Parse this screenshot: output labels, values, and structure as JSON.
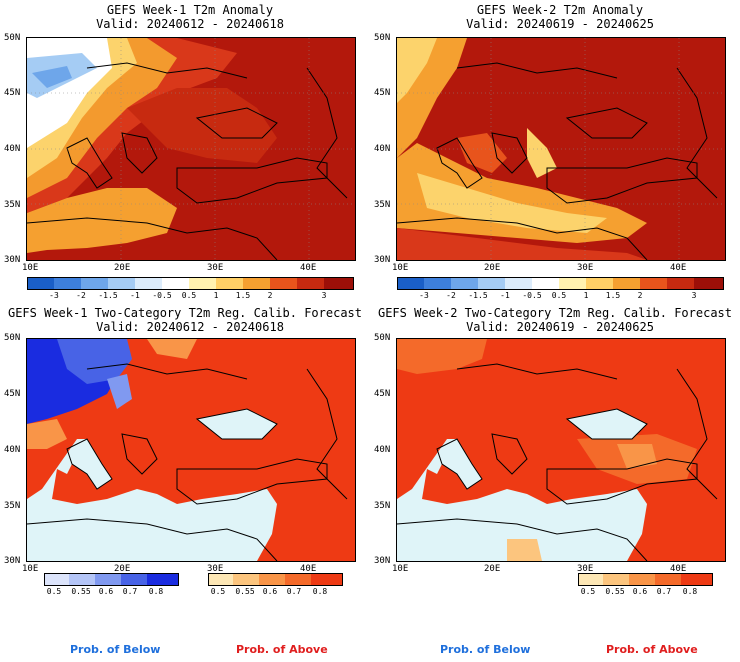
{
  "panels": [
    {
      "title": "GEFS Week-1 T2m Anomaly",
      "valid": "Valid: 20240612 - 20240618"
    },
    {
      "title": "GEFS Week-2 T2m Anomaly",
      "valid": "Valid: 20240619 - 20240625"
    },
    {
      "title": "GEFS Week-1 Two-Category T2m Reg. Calib. Forecast",
      "valid": "Valid: 20240612 - 20240618"
    },
    {
      "title": "GEFS Week-2 Two-Category T2m Reg. Calib. Forecast",
      "valid": "Valid: 20240619 - 20240625"
    }
  ],
  "axes": {
    "lat_labels": [
      "50N",
      "45N",
      "40N",
      "35N",
      "30N"
    ],
    "lon_labels": [
      "10E",
      "20E",
      "30E",
      "40E"
    ]
  },
  "anomaly_colorbar": {
    "ticks": [
      "-3",
      "-2",
      "-1.5",
      "-1",
      "-0.5",
      "0.5",
      "1",
      "1.5",
      "2",
      "3"
    ],
    "colors": [
      "#1a5fc8",
      "#3d7fdc",
      "#6ea6ea",
      "#a5ccf4",
      "#dcecfb",
      "#ffffff",
      "#fff2b0",
      "#ffd066",
      "#f5a030",
      "#e8541c",
      "#c72a10",
      "#9c0f08"
    ]
  },
  "prob_below_colorbar": {
    "ticks": [
      "0.5",
      "0.55",
      "0.6",
      "0.7",
      "0.8"
    ],
    "colors": [
      "#dce4fb",
      "#b4c5f7",
      "#8099f0",
      "#4863e6",
      "#1a2ce0"
    ]
  },
  "prob_above_colorbar": {
    "ticks": [
      "0.5",
      "0.55",
      "0.6",
      "0.7",
      "0.8"
    ],
    "colors": [
      "#fde7b5",
      "#fcc57e",
      "#f99548",
      "#f46a2a",
      "#ee3a14"
    ]
  },
  "footer": {
    "below": "Prob. of Below",
    "above": "Prob. of Above",
    "below_color": "#1e6fdc",
    "above_color": "#e01e1e"
  },
  "colors": {
    "sea": "#dff4f8",
    "hot": "#b3180c",
    "warm": "#d9381a",
    "orange": "#f39a2e",
    "yellow": "#fcd36c",
    "above": "#ee3a14",
    "above_light": "#f4702c",
    "below": "#1a2ce0"
  }
}
